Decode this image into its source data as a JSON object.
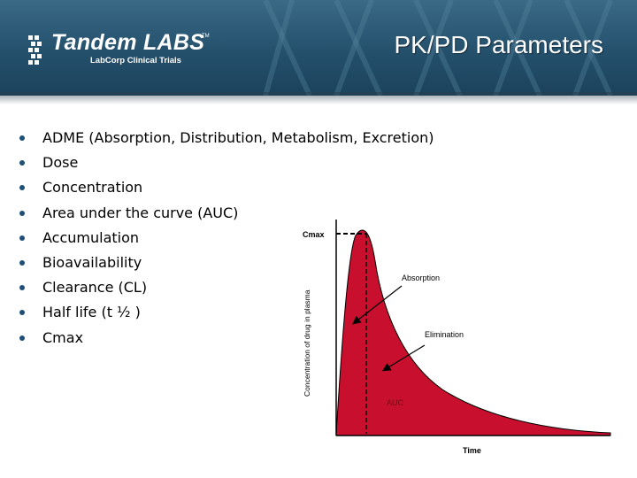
{
  "header": {
    "logo_brand": "Tandem LABS",
    "logo_tm": "TM",
    "logo_subtitle": "LabCorp Clinical Trials",
    "title": "PK/PD Parameters",
    "colors": {
      "band": "#24506c",
      "title_text": "#ffffff"
    }
  },
  "bullets": [
    {
      "text": "ADME (Absorption, Distribution, Metabolism, Excretion)"
    },
    {
      "text": "Dose"
    },
    {
      "text": "Concentration"
    },
    {
      "text": "Area under the curve (AUC)"
    },
    {
      "text": "Accumulation"
    },
    {
      "text": "Bioavailability"
    },
    {
      "text": "Clearance (CL)"
    },
    {
      "text": "Half life (t ½ )"
    },
    {
      "text": "Cmax"
    }
  ],
  "chart_data": {
    "type": "area",
    "ylabel": "Concentration of drug in plasma",
    "xlabel": "Time",
    "annotations": [
      "Cmax",
      "Absorption",
      "Elimination",
      "AUC"
    ],
    "colors": {
      "fill": "#c8102e",
      "stroke": "#000000"
    }
  }
}
